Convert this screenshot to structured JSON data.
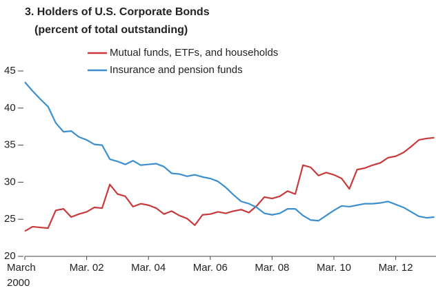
{
  "chart_data": {
    "type": "line",
    "title": "3. Holders of U.S. Corporate Bonds",
    "subtitle": "(percent of total outstanding)",
    "categories": [
      "March 2000",
      null,
      null,
      null,
      null,
      null,
      null,
      null,
      "Mar. 02",
      null,
      null,
      null,
      null,
      null,
      null,
      null,
      "Mar. 04",
      null,
      null,
      null,
      null,
      null,
      null,
      null,
      "Mar. 06",
      null,
      null,
      null,
      null,
      null,
      null,
      null,
      "Mar. 08",
      null,
      null,
      null,
      null,
      null,
      null,
      null,
      "Mar. 10",
      null,
      null,
      null,
      null,
      null,
      null,
      null,
      "Mar. 12",
      null,
      null,
      null,
      null,
      null
    ],
    "series": [
      {
        "name": "Mutual funds, ETFs, and households",
        "color": "#c8393b",
        "values": [
          23.4,
          24,
          23.9,
          23.8,
          26.2,
          26.4,
          25.3,
          25.7,
          26,
          26.6,
          26.5,
          29.7,
          28.4,
          28.1,
          26.7,
          27.1,
          26.9,
          26.5,
          25.7,
          26.1,
          25.5,
          25.1,
          24.2,
          25.6,
          25.7,
          26,
          25.8,
          26.1,
          26.3,
          25.9,
          26.8,
          28,
          27.8,
          28.1,
          28.8,
          28.4,
          32.3,
          32,
          30.9,
          31.3,
          31,
          30.5,
          29.1,
          31.7,
          31.9,
          32.3,
          32.6,
          33.3,
          33.5,
          34,
          34.8,
          35.7,
          35.9,
          36
        ]
      },
      {
        "name": "Insurance and pension funds",
        "color": "#3b8fcf",
        "values": [
          43.5,
          42.3,
          41.2,
          40.2,
          38,
          36.8,
          36.9,
          36.1,
          35.7,
          35.1,
          35,
          33.1,
          32.8,
          32.4,
          32.9,
          32.3,
          32.4,
          32.5,
          32.1,
          31.2,
          31.1,
          30.8,
          31,
          30.7,
          30.5,
          30.1,
          29.3,
          28.3,
          27.4,
          27.1,
          26.6,
          25.8,
          25.6,
          25.8,
          26.4,
          26.4,
          25.5,
          24.9,
          24.8,
          25.5,
          26.2,
          26.8,
          26.7,
          26.9,
          27.1,
          27.1,
          27.2,
          27.4,
          27,
          26.6,
          26,
          25.4,
          25.2,
          25.3
        ]
      }
    ],
    "ylim": [
      20,
      45
    ],
    "yticks": [
      20,
      25,
      30,
      35,
      40,
      45
    ],
    "grid": false
  }
}
